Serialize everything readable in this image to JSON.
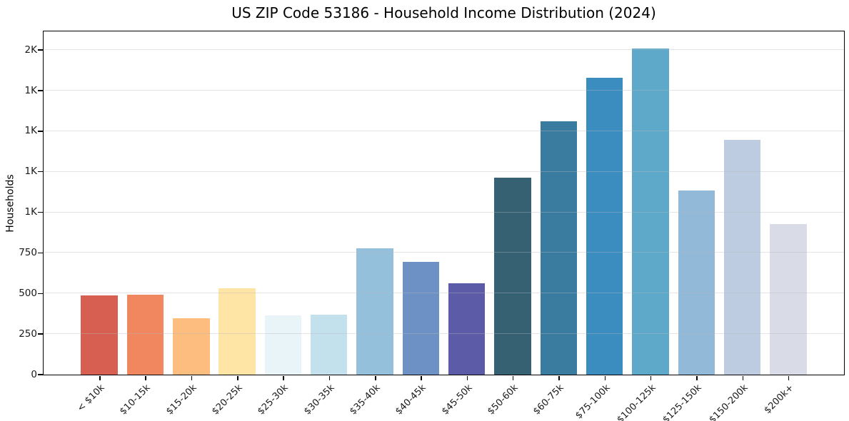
{
  "chart_data": {
    "type": "bar",
    "title": "US ZIP Code 53186 - Household Income Distribution (2024)",
    "xlabel": "",
    "ylabel": "Households",
    "categories": [
      "< $10k",
      "$10-15k",
      "$15-20k",
      "$20-25k",
      "$25-30k",
      "$30-35k",
      "$35-40k",
      "$40-45k",
      "$45-50k",
      "$50-60k",
      "$60-75k",
      "$75-100k",
      "$100-125k",
      "$125-150k",
      "$150-200k",
      "$200k+"
    ],
    "values": [
      486,
      491,
      347,
      533,
      365,
      370,
      780,
      695,
      563,
      1215,
      1560,
      1830,
      2010,
      1135,
      1445,
      930
    ],
    "bar_colors": [
      "#d65f51",
      "#f1875f",
      "#fcbd7e",
      "#fee5a6",
      "#e8f4f7",
      "#c3e1ec",
      "#94c0dc",
      "#6d91c4",
      "#5c5ba7",
      "#356173",
      "#3a7ba0",
      "#3b8dc0",
      "#5ea8ca",
      "#93b9d8",
      "#bdcce0",
      "#d9dbe7"
    ],
    "ylim": [
      0,
      2115
    ],
    "yticks": [
      {
        "value": 0,
        "label": "0"
      },
      {
        "value": 250,
        "label": "250"
      },
      {
        "value": 500,
        "label": "500"
      },
      {
        "value": 750,
        "label": "750"
      },
      {
        "value": 1000,
        "label": "1K"
      },
      {
        "value": 1250,
        "label": "1K"
      },
      {
        "value": 1500,
        "label": "1K"
      },
      {
        "value": 1750,
        "label": "1K"
      },
      {
        "value": 2000,
        "label": "2K"
      }
    ],
    "grid": "horizontal",
    "legend": "none"
  },
  "colors": {
    "background": "#ffffff",
    "spine": "#000000",
    "grid": "#e9e9ec",
    "text": "#1a1a1a"
  }
}
